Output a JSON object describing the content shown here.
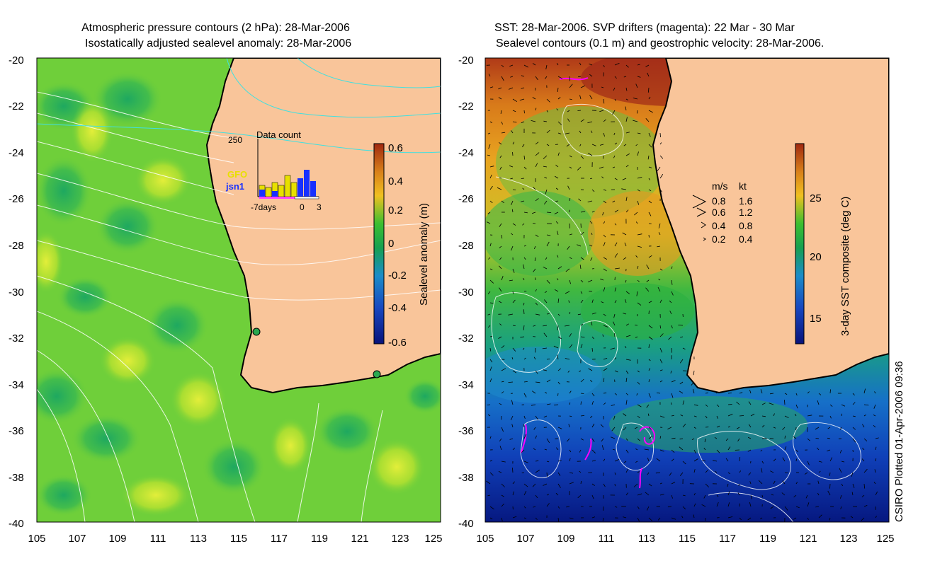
{
  "left_panel": {
    "title_line1": "Atmospheric pressure contours (2 hPa): 28-Mar-2006",
    "title_line2": "Isostatically adjusted sealevel anomaly: 28-Mar-2006",
    "y_ticks": [
      "-20",
      "-22",
      "-24",
      "-26",
      "-28",
      "-30",
      "-32",
      "-34",
      "-36",
      "-38",
      "-40"
    ],
    "x_ticks": [
      "105",
      "107",
      "109",
      "111",
      "113",
      "115",
      "117",
      "119",
      "121",
      "123",
      "125"
    ],
    "colorbar": {
      "label": "Sealevel anomaly (m)",
      "ticks": [
        "0.6",
        "0.4",
        "0.2",
        "0",
        "-0.2",
        "-0.4",
        "-0.6"
      ],
      "range": [
        -0.6,
        0.6
      ]
    },
    "inset": {
      "title": "Data count",
      "y_max_label": "250",
      "x_labels": [
        "-7days",
        "0",
        "3"
      ],
      "legend": [
        {
          "name": "GFO",
          "color": "#e8e000"
        },
        {
          "name": "jsn1",
          "color": "#0000ff"
        }
      ]
    }
  },
  "right_panel": {
    "title_line1": "SST: 28-Mar-2006. SVP drifters (magenta): 22 Mar - 30 Mar",
    "title_line2": "Sealevel contours (0.1 m) and geostrophic velocity: 28-Mar-2006.",
    "y_ticks": [
      "-20",
      "-22",
      "-24",
      "-26",
      "-28",
      "-30",
      "-32",
      "-34",
      "-36",
      "-38",
      "-40"
    ],
    "x_ticks": [
      "105",
      "107",
      "109",
      "111",
      "113",
      "115",
      "117",
      "119",
      "121",
      "123",
      "125"
    ],
    "colorbar": {
      "label": "3-day SST composite (deg C)",
      "ticks": [
        "25",
        "20",
        "15"
      ],
      "range": [
        13,
        30
      ]
    },
    "speed_legend": {
      "header_ms": "m/s",
      "header_kt": "kt",
      "rows": [
        {
          "ms": "0.8",
          "kt": "1.6"
        },
        {
          "ms": "0.6",
          "kt": "1.2"
        },
        {
          "ms": "0.4",
          "kt": "0.8"
        },
        {
          "ms": "0.2",
          "kt": "0.4"
        }
      ]
    }
  },
  "footer": {
    "credit": "CSIRO Plotted 01-Apr-2006 09:36"
  },
  "colors": {
    "land": "#f9c59a",
    "coast": "#000000",
    "drifters": "#ff00ff"
  }
}
